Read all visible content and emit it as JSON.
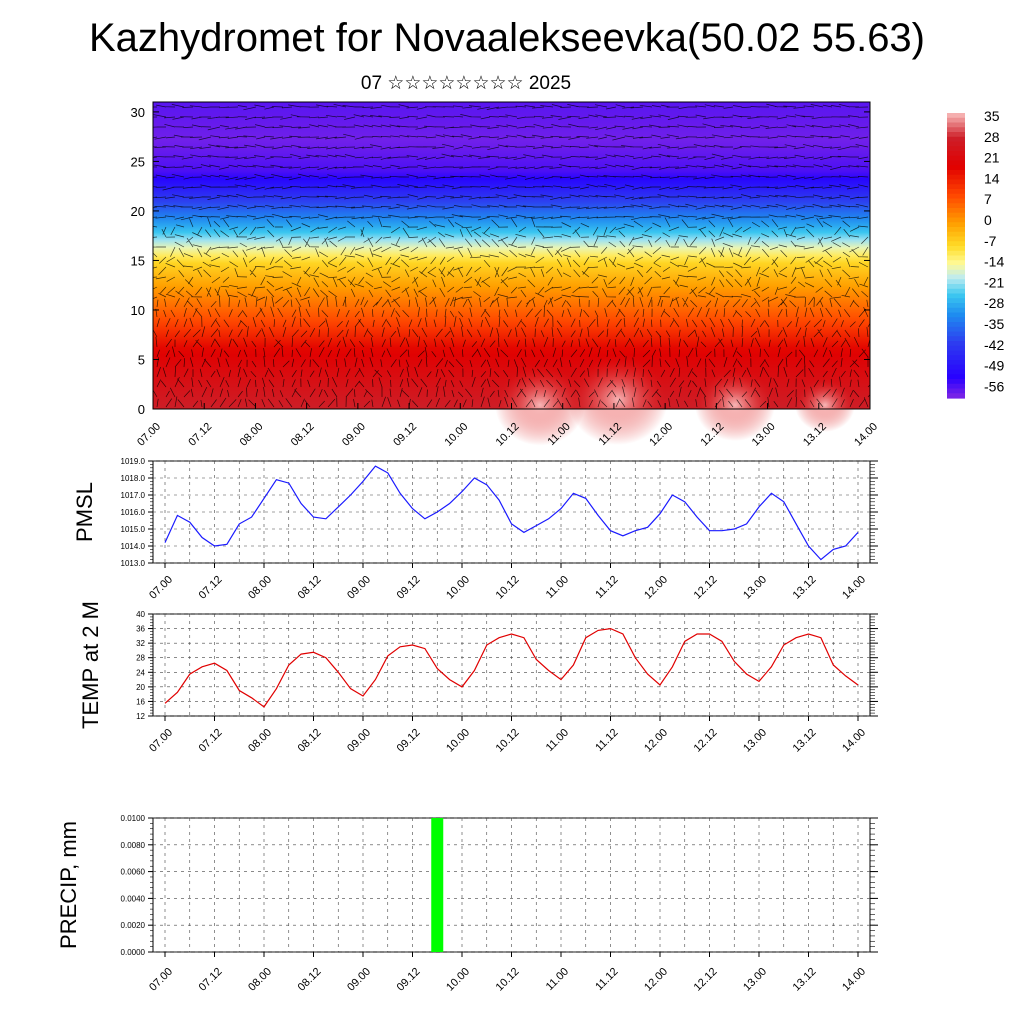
{
  "title": "Kazhydromet for Novaalekseevka(50.02 55.63)",
  "subtitle": "07 ☆☆☆☆☆☆☆☆ 2025",
  "colors": {
    "pressure_line": "#1a1aff",
    "temperature_line": "#e00000",
    "precip_bar": "#00ff00"
  },
  "chart_data": [
    {
      "type": "heatmap",
      "description_kind": "height-time cross section with wind vectors",
      "x_tick_labels": [
        "07.00",
        "07.12",
        "08.00",
        "08.12",
        "09.00",
        "09.12",
        "10.00",
        "10.12",
        "11.00",
        "11.12",
        "12.00",
        "12.12",
        "13.00",
        "13.12",
        "14.00"
      ],
      "y_tick_labels": [
        "0",
        "5",
        "10",
        "15",
        "20",
        "25",
        "30"
      ],
      "ylim": [
        0,
        31
      ],
      "colorbar_labels": [
        "35",
        "28",
        "21",
        "14",
        "7",
        "0",
        "-7",
        "-14",
        "-21",
        "-28",
        "-35",
        "-42",
        "-49",
        "-56"
      ],
      "colorbar_range": [
        -60,
        38
      ],
      "profile_heights": [
        0,
        3,
        6,
        9,
        12,
        15,
        18,
        21,
        24,
        27,
        31
      ],
      "profile_values": [
        30,
        25,
        20,
        10,
        2,
        -7,
        -25,
        -40,
        -55,
        -58,
        -56
      ]
    },
    {
      "type": "line",
      "ylabel": "PMSL",
      "x_tick_labels": [
        "07.00",
        "07.12",
        "08.00",
        "08.12",
        "09.00",
        "09.12",
        "10.00",
        "10.12",
        "11.00",
        "11.12",
        "12.00",
        "12.12",
        "13.00",
        "13.12",
        "14.00"
      ],
      "y_tick_labels": [
        "1013.0",
        "1014.0",
        "1015.0",
        "1016.0",
        "1017.0",
        "1018.0",
        "1019.0"
      ],
      "ylim": [
        1013.0,
        1019.0
      ],
      "x_hours": [
        0,
        3,
        6,
        9,
        12,
        15,
        18,
        21,
        24,
        27,
        30,
        33,
        36,
        39,
        42,
        45,
        48,
        51,
        54,
        57,
        60,
        63,
        66,
        69,
        72,
        75,
        78,
        81,
        84,
        87,
        90,
        93,
        96,
        99,
        102,
        105,
        108,
        111,
        114,
        117,
        120,
        123,
        126,
        129,
        132,
        135,
        138,
        141,
        144,
        147,
        150,
        153,
        156,
        159,
        162,
        165,
        168
      ],
      "values": [
        1014.2,
        1015.8,
        1015.4,
        1014.5,
        1014.0,
        1014.1,
        1015.3,
        1015.7,
        1016.8,
        1017.9,
        1017.7,
        1016.5,
        1015.7,
        1015.6,
        1016.3,
        1017.0,
        1017.8,
        1018.7,
        1018.3,
        1017.1,
        1016.2,
        1015.6,
        1016.0,
        1016.5,
        1017.2,
        1018.0,
        1017.6,
        1016.7,
        1015.3,
        1014.8,
        1015.2,
        1015.6,
        1016.2,
        1017.1,
        1016.8,
        1015.8,
        1014.9,
        1014.6,
        1014.9,
        1015.1,
        1015.9,
        1017.0,
        1016.6,
        1015.7,
        1014.9,
        1014.9,
        1015.0,
        1015.3,
        1016.3,
        1017.1,
        1016.6,
        1015.3,
        1014.0,
        1013.2,
        1013.8,
        1014.0,
        1014.8
      ],
      "grid": true
    },
    {
      "type": "line",
      "ylabel": "TEMP at 2 M",
      "x_tick_labels": [
        "07.00",
        "07.12",
        "08.00",
        "08.12",
        "09.00",
        "09.12",
        "10.00",
        "10.12",
        "11.00",
        "11.12",
        "12.00",
        "12.12",
        "13.00",
        "13.12",
        "14.00"
      ],
      "y_tick_labels": [
        "12",
        "16",
        "20",
        "24",
        "28",
        "32",
        "36",
        "40"
      ],
      "ylim": [
        12,
        40
      ],
      "x_hours": [
        0,
        3,
        6,
        9,
        12,
        15,
        18,
        21,
        24,
        27,
        30,
        33,
        36,
        39,
        42,
        45,
        48,
        51,
        54,
        57,
        60,
        63,
        66,
        69,
        72,
        75,
        78,
        81,
        84,
        87,
        90,
        93,
        96,
        99,
        102,
        105,
        108,
        111,
        114,
        117,
        120,
        123,
        126,
        129,
        132,
        135,
        138,
        141,
        144,
        147,
        150,
        153,
        156,
        159,
        162,
        165,
        168
      ],
      "values": [
        15.5,
        18.5,
        23.5,
        25.5,
        26.5,
        24.5,
        19,
        17,
        14.5,
        19.5,
        26,
        29,
        29.5,
        28,
        24,
        19.5,
        17.5,
        22,
        28.5,
        31,
        31.5,
        30.5,
        25,
        22,
        20,
        24.5,
        31.5,
        33.5,
        34.5,
        33.5,
        27.5,
        24.5,
        22,
        26,
        33.5,
        35.5,
        36,
        34.5,
        28,
        23.5,
        20.5,
        25.5,
        32.5,
        34.5,
        34.5,
        32.5,
        27,
        23.5,
        21.5,
        25.5,
        31.5,
        33.5,
        34.5,
        33.5,
        26,
        23,
        20.5
      ],
      "grid": true
    },
    {
      "type": "bar",
      "ylabel": "PRECIP, mm",
      "x_tick_labels": [
        "07.00",
        "07.12",
        "08.00",
        "08.12",
        "09.00",
        "09.12",
        "10.00",
        "10.12",
        "11.00",
        "11.12",
        "12.00",
        "12.12",
        "13.00",
        "13.12",
        "14.00"
      ],
      "y_tick_labels": [
        "0.0000",
        "0.0020",
        "0.0040",
        "0.0060",
        "0.0080",
        "0.0100"
      ],
      "ylim": [
        0,
        0.01
      ],
      "bars": [
        {
          "x_hour": 66,
          "value": 0.01
        }
      ],
      "grid": true
    }
  ]
}
